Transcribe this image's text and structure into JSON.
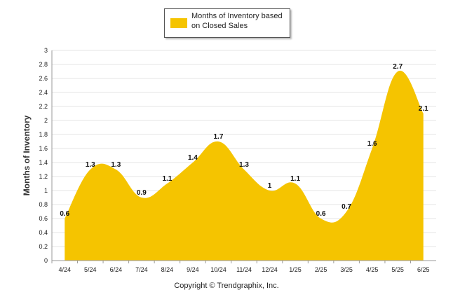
{
  "chart_data": {
    "type": "area",
    "title": "",
    "xlabel": "",
    "ylabel": "Months of Inventory",
    "categories": [
      "4/24",
      "5/24",
      "6/24",
      "7/24",
      "8/24",
      "9/24",
      "10/24",
      "11/24",
      "12/24",
      "1/25",
      "2/25",
      "3/25",
      "4/25",
      "5/25",
      "6/25"
    ],
    "series": [
      {
        "name": "Months of Inventory based on Closed Sales",
        "values": [
          0.6,
          1.3,
          1.3,
          0.9,
          1.1,
          1.4,
          1.7,
          1.3,
          1.0,
          1.1,
          0.6,
          0.7,
          1.6,
          2.7,
          2.1
        ]
      }
    ],
    "data_labels": [
      "0.6",
      "1.3",
      "1.3",
      "0.9",
      "1.1",
      "1.4",
      "1.7",
      "1.3",
      "1",
      "1.1",
      "0.6",
      "0.7",
      "1.6",
      "2.7",
      "2.1"
    ],
    "ylim": [
      0,
      3
    ],
    "yticks": [
      "0",
      "0.2",
      "0.4",
      "0.6",
      "0.8",
      "1",
      "1.2",
      "1.4",
      "1.6",
      "1.8",
      "2",
      "2.2",
      "2.4",
      "2.6",
      "2.8",
      "3"
    ],
    "grid": true,
    "legend_position": "top-center",
    "colors": {
      "fill": "#F5C400",
      "grid": "#e4e4e4",
      "axis": "#999999"
    }
  },
  "footer": {
    "copyright": "Copyright © Trendgraphix, Inc."
  }
}
